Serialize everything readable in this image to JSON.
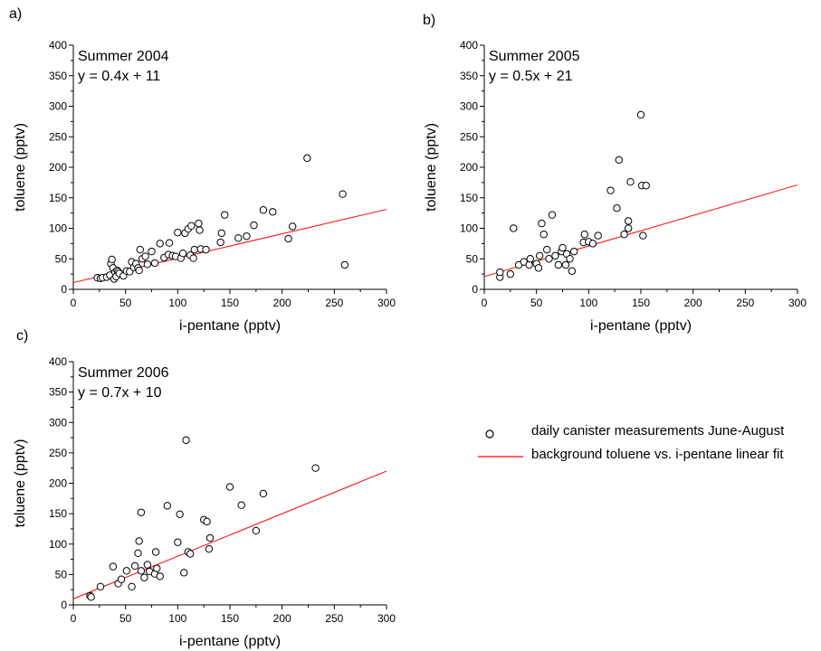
{
  "colors": {
    "axis": "#000000",
    "fit_line": "#ff0000",
    "marker_stroke": "#000000",
    "marker_fill": "#ffffff"
  },
  "legend": {
    "items": [
      {
        "marker": "open-circle",
        "label": "daily canister measurements June-August"
      },
      {
        "marker": "red-line",
        "label": "background toluene vs. i-pentane linear fit"
      }
    ]
  },
  "chart_data": [
    {
      "type": "scatter",
      "panel_label": "a)",
      "title": "Summer 2004",
      "equation": "y = 0.4x + 11",
      "xlabel": "i-pentane (pptv)",
      "ylabel": "toluene (pptv)",
      "xlim": [
        0,
        300
      ],
      "ylim": [
        0,
        400
      ],
      "xticks": [
        0,
        50,
        100,
        150,
        200,
        250,
        300
      ],
      "yticks": [
        0,
        50,
        100,
        150,
        200,
        250,
        300,
        350,
        400
      ],
      "fit": {
        "slope": 0.4,
        "intercept": 11
      },
      "points": [
        [
          23,
          19
        ],
        [
          26,
          18
        ],
        [
          28,
          19
        ],
        [
          32,
          20
        ],
        [
          35,
          23
        ],
        [
          36,
          42
        ],
        [
          37,
          49
        ],
        [
          38,
          35
        ],
        [
          39,
          17
        ],
        [
          40,
          28
        ],
        [
          41,
          21
        ],
        [
          42,
          31
        ],
        [
          43,
          29
        ],
        [
          44,
          26
        ],
        [
          48,
          22
        ],
        [
          51,
          30
        ],
        [
          54,
          29
        ],
        [
          56,
          45
        ],
        [
          58,
          36
        ],
        [
          60,
          42
        ],
        [
          62,
          35
        ],
        [
          63,
          31
        ],
        [
          64,
          65
        ],
        [
          66,
          50
        ],
        [
          69,
          54
        ],
        [
          71,
          41
        ],
        [
          75,
          62
        ],
        [
          78,
          43
        ],
        [
          83,
          75
        ],
        [
          87,
          52
        ],
        [
          91,
          57
        ],
        [
          92,
          76
        ],
        [
          95,
          55
        ],
        [
          98,
          54
        ],
        [
          100,
          93
        ],
        [
          103,
          51
        ],
        [
          105,
          59
        ],
        [
          107,
          92
        ],
        [
          110,
          99
        ],
        [
          112,
          56
        ],
        [
          113,
          104
        ],
        [
          115,
          51
        ],
        [
          116,
          65
        ],
        [
          120,
          108
        ],
        [
          121,
          97
        ],
        [
          122,
          66
        ],
        [
          127,
          65
        ],
        [
          141,
          77
        ],
        [
          142,
          92
        ],
        [
          145,
          122
        ],
        [
          158,
          84
        ],
        [
          166,
          87
        ],
        [
          173,
          105
        ],
        [
          182,
          130
        ],
        [
          191,
          127
        ],
        [
          206,
          83
        ],
        [
          210,
          103
        ],
        [
          224,
          215
        ],
        [
          258,
          156
        ],
        [
          260,
          40
        ]
      ]
    },
    {
      "type": "scatter",
      "panel_label": "b)",
      "title": "Summer 2005",
      "equation": "y = 0.5x + 21",
      "xlabel": "i-pentane (pptv)",
      "ylabel": "toluene (pptv)",
      "xlim": [
        0,
        300
      ],
      "ylim": [
        0,
        400
      ],
      "xticks": [
        0,
        50,
        100,
        150,
        200,
        250,
        300
      ],
      "yticks": [
        0,
        50,
        100,
        150,
        200,
        250,
        300,
        350,
        400
      ],
      "fit": {
        "slope": 0.5,
        "intercept": 21
      },
      "points": [
        [
          15,
          20
        ],
        [
          15,
          28
        ],
        [
          25,
          25
        ],
        [
          28,
          100
        ],
        [
          33,
          40
        ],
        [
          38,
          45
        ],
        [
          43,
          40
        ],
        [
          44,
          50
        ],
        [
          50,
          42
        ],
        [
          52,
          35
        ],
        [
          53,
          55
        ],
        [
          55,
          108
        ],
        [
          57,
          90
        ],
        [
          60,
          65
        ],
        [
          62,
          50
        ],
        [
          65,
          122
        ],
        [
          68,
          55
        ],
        [
          71,
          40
        ],
        [
          74,
          62
        ],
        [
          75,
          68
        ],
        [
          78,
          40
        ],
        [
          79,
          58
        ],
        [
          82,
          50
        ],
        [
          84,
          30
        ],
        [
          86,
          62
        ],
        [
          95,
          77
        ],
        [
          96,
          90
        ],
        [
          100,
          78
        ],
        [
          104,
          75
        ],
        [
          109,
          88
        ],
        [
          121,
          162
        ],
        [
          127,
          133
        ],
        [
          129,
          212
        ],
        [
          134,
          90
        ],
        [
          138,
          112
        ],
        [
          138,
          100
        ],
        [
          140,
          176
        ],
        [
          150,
          286
        ],
        [
          151,
          170
        ],
        [
          152,
          88
        ],
        [
          155,
          170
        ]
      ]
    },
    {
      "type": "scatter",
      "panel_label": "c)",
      "title": "Summer 2006",
      "equation": "y = 0.7x + 10",
      "xlabel": "i-pentane (pptv)",
      "ylabel": "toluene (pptv)",
      "xlim": [
        0,
        300
      ],
      "ylim": [
        0,
        400
      ],
      "xticks": [
        0,
        50,
        100,
        150,
        200,
        250,
        300
      ],
      "yticks": [
        0,
        50,
        100,
        150,
        200,
        250,
        300,
        350,
        400
      ],
      "fit": {
        "slope": 0.7,
        "intercept": 10
      },
      "points": [
        [
          16,
          15
        ],
        [
          17,
          13
        ],
        [
          26,
          30
        ],
        [
          38,
          63
        ],
        [
          43,
          35
        ],
        [
          46,
          42
        ],
        [
          51,
          56
        ],
        [
          56,
          30
        ],
        [
          59,
          64
        ],
        [
          62,
          85
        ],
        [
          63,
          105
        ],
        [
          65,
          152
        ],
        [
          65,
          56
        ],
        [
          68,
          45
        ],
        [
          71,
          66
        ],
        [
          73,
          55
        ],
        [
          78,
          51
        ],
        [
          79,
          87
        ],
        [
          80,
          60
        ],
        [
          83,
          47
        ],
        [
          90,
          163
        ],
        [
          100,
          103
        ],
        [
          102,
          149
        ],
        [
          106,
          53
        ],
        [
          108,
          271
        ],
        [
          110,
          87
        ],
        [
          112,
          84
        ],
        [
          125,
          140
        ],
        [
          128,
          137
        ],
        [
          130,
          92
        ],
        [
          131,
          110
        ],
        [
          150,
          194
        ],
        [
          161,
          164
        ],
        [
          175,
          122
        ],
        [
          182,
          183
        ],
        [
          232,
          225
        ]
      ]
    }
  ]
}
